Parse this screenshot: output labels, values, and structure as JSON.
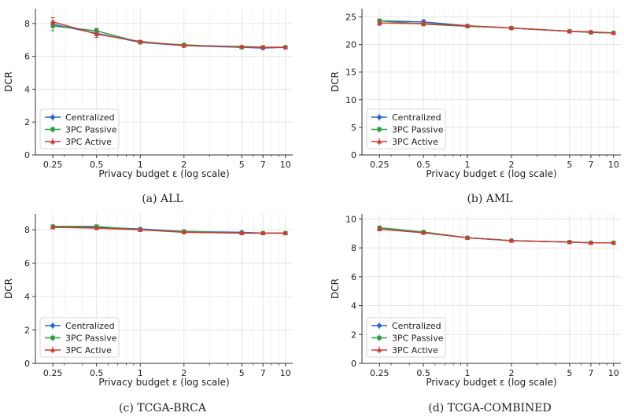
{
  "chart_data": [
    {
      "type": "line",
      "caption": "(a) ALL",
      "xlabel": "Privacy budget ε (log scale)",
      "ylabel": "DCR",
      "x": [
        0.25,
        0.5,
        1,
        2,
        5,
        7,
        10
      ],
      "x_tick_labels": [
        "0.25",
        "0.5",
        "1",
        "2",
        "5",
        "7",
        "10"
      ],
      "xscale": "log",
      "ylim": [
        0,
        8.9
      ],
      "yticks": [
        0,
        2,
        4,
        6,
        8
      ],
      "grid": true,
      "legend": "bottom-left",
      "series": [
        {
          "name": "Centralized",
          "values": [
            7.95,
            7.4,
            6.85,
            6.65,
            6.55,
            6.5,
            6.55
          ],
          "err": [
            0.1,
            0.25,
            0.07,
            0.05,
            0.05,
            0.05,
            0.05
          ],
          "color": "#2b63d6",
          "marker": "circle"
        },
        {
          "name": "3PC Passive",
          "values": [
            7.85,
            7.55,
            6.85,
            6.7,
            6.55,
            6.55,
            6.55
          ],
          "err": [
            0.3,
            0.15,
            0.07,
            0.05,
            0.05,
            0.05,
            0.05
          ],
          "color": "#2a9d3f",
          "marker": "square"
        },
        {
          "name": "3PC Active",
          "values": [
            8.1,
            7.35,
            6.9,
            6.65,
            6.6,
            6.55,
            6.55
          ],
          "err": [
            0.25,
            0.2,
            0.07,
            0.05,
            0.05,
            0.05,
            0.05
          ],
          "color": "#d03a34",
          "marker": "triangle"
        }
      ]
    },
    {
      "type": "line",
      "caption": "(b) AML",
      "xlabel": "Privacy budget ε (log scale)",
      "ylabel": "DCR",
      "x": [
        0.25,
        0.5,
        1,
        2,
        5,
        7,
        10
      ],
      "x_tick_labels": [
        "0.25",
        "0.5",
        "1",
        "2",
        "5",
        "7",
        "10"
      ],
      "xscale": "log",
      "ylim": [
        0,
        26.5
      ],
      "yticks": [
        0,
        5,
        10,
        15,
        20,
        25
      ],
      "grid": true,
      "legend": "bottom-left",
      "series": [
        {
          "name": "Centralized",
          "values": [
            24.3,
            24.1,
            23.4,
            23.0,
            22.4,
            22.2,
            22.1
          ],
          "err": [
            0.3,
            0.4,
            0.2,
            0.15,
            0.15,
            0.15,
            0.15
          ],
          "color": "#2b63d6",
          "marker": "circle"
        },
        {
          "name": "3PC Passive",
          "values": [
            24.3,
            23.7,
            23.3,
            23.0,
            22.4,
            22.2,
            22.1
          ],
          "err": [
            0.3,
            0.3,
            0.2,
            0.15,
            0.15,
            0.15,
            0.15
          ],
          "color": "#2a9d3f",
          "marker": "square"
        },
        {
          "name": "3PC Active",
          "values": [
            23.9,
            23.8,
            23.4,
            23.0,
            22.4,
            22.3,
            22.1
          ],
          "err": [
            0.4,
            0.3,
            0.2,
            0.15,
            0.15,
            0.15,
            0.15
          ],
          "color": "#d03a34",
          "marker": "triangle"
        }
      ]
    },
    {
      "type": "line",
      "caption": "(c) TCGA-BRCA",
      "xlabel": "Privacy budget ε (log scale)",
      "ylabel": "DCR",
      "x": [
        0.25,
        0.5,
        1,
        2,
        5,
        7,
        10
      ],
      "x_tick_labels": [
        "0.25",
        "0.5",
        "1",
        "2",
        "5",
        "7",
        "10"
      ],
      "xscale": "log",
      "ylim": [
        0,
        8.95
      ],
      "yticks": [
        0,
        2,
        4,
        6,
        8
      ],
      "grid": true,
      "legend": "bottom-left",
      "series": [
        {
          "name": "Centralized",
          "values": [
            8.2,
            8.15,
            8.05,
            7.9,
            7.85,
            7.8,
            7.8
          ],
          "err": [
            0.05,
            0.05,
            0.05,
            0.05,
            0.05,
            0.05,
            0.05
          ],
          "color": "#2b63d6",
          "marker": "circle"
        },
        {
          "name": "3PC Passive",
          "values": [
            8.2,
            8.2,
            8.0,
            7.9,
            7.8,
            7.8,
            7.8
          ],
          "err": [
            0.05,
            0.05,
            0.05,
            0.05,
            0.05,
            0.05,
            0.05
          ],
          "color": "#2a9d3f",
          "marker": "square"
        },
        {
          "name": "3PC Active",
          "values": [
            8.15,
            8.1,
            8.0,
            7.85,
            7.8,
            7.8,
            7.8
          ],
          "err": [
            0.05,
            0.05,
            0.05,
            0.05,
            0.05,
            0.05,
            0.05
          ],
          "color": "#d03a34",
          "marker": "triangle"
        }
      ]
    },
    {
      "type": "line",
      "caption": "(d) TCGA-COMBINED",
      "xlabel": "Privacy budget ε (log scale)",
      "ylabel": "DCR",
      "x": [
        0.25,
        0.5,
        1,
        2,
        5,
        7,
        10
      ],
      "x_tick_labels": [
        "0.25",
        "0.5",
        "1",
        "2",
        "5",
        "7",
        "10"
      ],
      "xscale": "log",
      "ylim": [
        0,
        10.35
      ],
      "yticks": [
        0,
        2,
        4,
        6,
        8,
        10
      ],
      "grid": true,
      "legend": "bottom-left",
      "series": [
        {
          "name": "Centralized",
          "values": [
            9.3,
            9.05,
            8.7,
            8.5,
            8.4,
            8.35,
            8.35
          ],
          "err": [
            0.1,
            0.05,
            0.05,
            0.05,
            0.05,
            0.05,
            0.05
          ],
          "color": "#2b63d6",
          "marker": "circle"
        },
        {
          "name": "3PC Passive",
          "values": [
            9.4,
            9.1,
            8.7,
            8.5,
            8.4,
            8.35,
            8.35
          ],
          "err": [
            0.1,
            0.05,
            0.05,
            0.05,
            0.05,
            0.05,
            0.05
          ],
          "color": "#2a9d3f",
          "marker": "square"
        },
        {
          "name": "3PC Active",
          "values": [
            9.3,
            9.05,
            8.7,
            8.5,
            8.4,
            8.35,
            8.35
          ],
          "err": [
            0.1,
            0.05,
            0.05,
            0.05,
            0.05,
            0.05,
            0.05
          ],
          "color": "#d03a34",
          "marker": "triangle"
        }
      ]
    }
  ]
}
